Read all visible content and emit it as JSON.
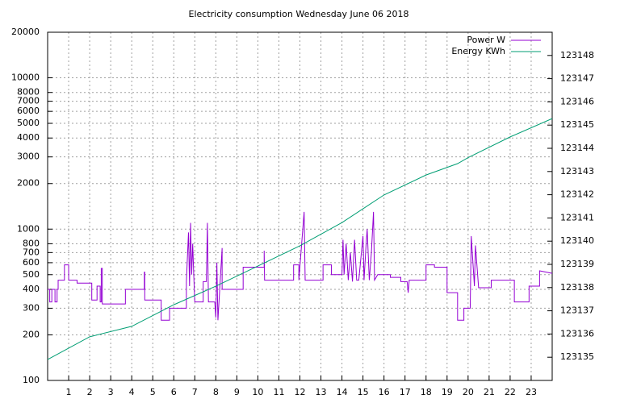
{
  "chart_data": {
    "type": "line",
    "title": "Electricity consumption Wednesday June 06 2018",
    "xlim": [
      0,
      24
    ],
    "xticks": [
      1,
      2,
      3,
      4,
      5,
      6,
      7,
      8,
      9,
      10,
      11,
      12,
      13,
      14,
      15,
      16,
      17,
      18,
      19,
      20,
      21,
      22,
      23
    ],
    "ylim": [
      100,
      20000
    ],
    "log_y": true,
    "yticks": [
      100,
      200,
      300,
      400,
      500,
      600,
      700,
      800,
      1000,
      2000,
      3000,
      4000,
      5000,
      6000,
      7000,
      8000,
      10000,
      20000
    ],
    "y2lim": [
      123134,
      123149
    ],
    "y2ticks": [
      123135,
      123136,
      123137,
      123138,
      123139,
      123140,
      123141,
      123142,
      123143,
      123144,
      123145,
      123146,
      123147,
      123148
    ],
    "grid": true,
    "legend": "top-right",
    "series": [
      {
        "name": "Power W",
        "color": "#9400d3",
        "x": [
          0,
          0.1,
          0.1,
          0.2,
          0.2,
          0.35,
          0.35,
          0.45,
          0.45,
          0.5,
          0.5,
          0.8,
          0.8,
          1.0,
          1.0,
          1.4,
          1.4,
          2.1,
          2.1,
          2.35,
          2.35,
          2.5,
          2.5,
          2.55,
          2.55,
          2.6,
          2.6,
          3.7,
          3.7,
          4.6,
          4.6,
          4.62,
          4.62,
          5.4,
          5.4,
          5.8,
          5.8,
          6.6,
          6.6,
          6.7,
          6.75,
          6.8,
          6.85,
          6.9,
          6.95,
          7.0,
          7.4,
          7.4,
          7.55,
          7.6,
          7.65,
          7.95,
          8.0,
          8.05,
          8.1,
          8.3,
          8.3,
          9.3,
          9.3,
          10.3,
          10.3,
          10.32,
          11.7,
          11.7,
          11.95,
          11.95,
          12.2,
          12.25,
          13.1,
          13.1,
          13.5,
          13.5,
          14.0,
          14.05,
          14.1,
          14.2,
          14.3,
          14.4,
          14.5,
          14.6,
          14.7,
          14.8,
          15.0,
          15.05,
          15.15,
          15.2,
          15.3,
          15.4,
          15.5,
          15.55,
          15.7,
          16.3,
          16.3,
          16.8,
          16.8,
          17.1,
          17.15,
          17.2,
          18.0,
          18.0,
          18.4,
          18.4,
          19.0,
          19.0,
          19.5,
          19.5,
          19.8,
          19.8,
          20.1,
          20.15,
          20.3,
          20.35,
          20.5,
          21.1,
          21.1,
          22.2,
          22.2,
          22.9,
          22.9,
          23.4,
          23.4,
          24
        ],
        "values": [
          400,
          400,
          330,
          330,
          400,
          400,
          330,
          330,
          400,
          400,
          460,
          460,
          580,
          580,
          460,
          460,
          440,
          440,
          340,
          340,
          420,
          420,
          330,
          330,
          550,
          550,
          320,
          320,
          400,
          400,
          520,
          520,
          340,
          340,
          250,
          250,
          300,
          300,
          450,
          950,
          420,
          1100,
          500,
          800,
          500,
          330,
          330,
          450,
          450,
          1100,
          330,
          330,
          260,
          600,
          250,
          750,
          400,
          400,
          560,
          560,
          720,
          460,
          460,
          580,
          580,
          460,
          1300,
          460,
          460,
          580,
          580,
          500,
          500,
          850,
          500,
          800,
          460,
          700,
          450,
          850,
          460,
          460,
          900,
          460,
          800,
          1000,
          460,
          700,
          1300,
          460,
          500,
          500,
          480,
          480,
          450,
          450,
          380,
          460,
          460,
          580,
          580,
          560,
          560,
          380,
          380,
          250,
          250,
          300,
          300,
          900,
          420,
          780,
          410,
          410,
          460,
          460,
          330,
          330,
          420,
          420,
          530,
          510
        ]
      },
      {
        "name": "Energy KWh",
        "color": "#009e73",
        "axis": "y2",
        "x": [
          0,
          2,
          4,
          6,
          8,
          10,
          12,
          14,
          16,
          18,
          19.5,
          20,
          22,
          24
        ],
        "values": [
          123134.9,
          123135.88,
          123136.33,
          123137.26,
          123138.06,
          123138.93,
          123139.8,
          123140.8,
          123141.99,
          123142.85,
          123143.34,
          123143.6,
          123144.49,
          123145.28
        ]
      }
    ]
  }
}
